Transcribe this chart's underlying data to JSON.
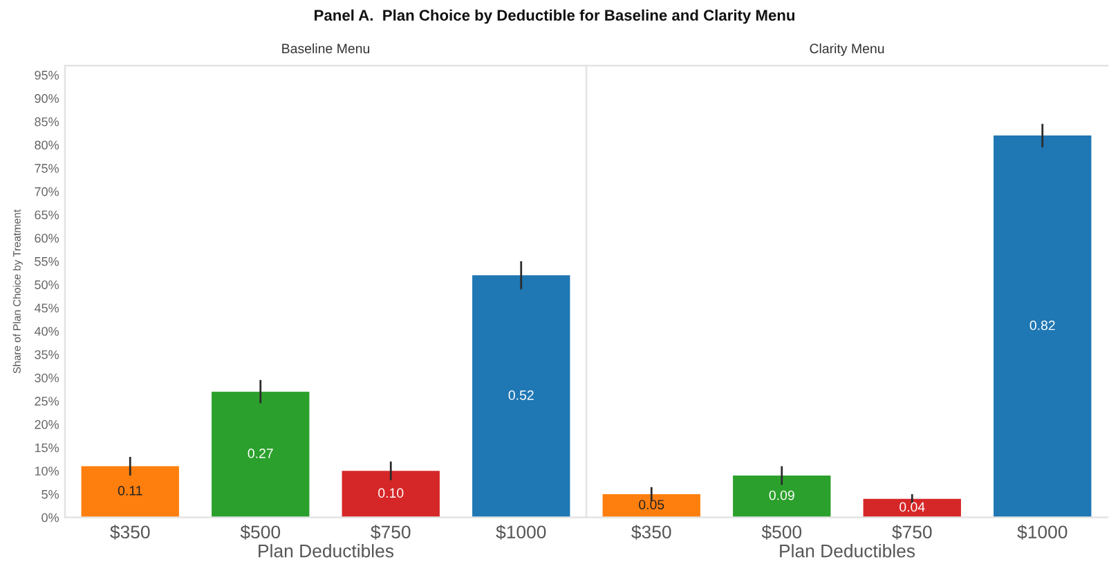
{
  "chart_data": [
    {
      "type": "bar",
      "title": "Panel A.  Plan Choice by Deductible for Baseline and Clarity Menu",
      "subtitle": "Baseline Menu",
      "xlabel": "Plan Deductibles",
      "ylabel": "Share of Plan Choice by Treatment",
      "categories": [
        "$350",
        "$500",
        "$750",
        "$1000"
      ],
      "values": [
        0.11,
        0.27,
        0.1,
        0.52
      ],
      "colors": [
        "#ff7f0e",
        "#2ca02c",
        "#d62728",
        "#1f77b4"
      ],
      "errors": [
        0.02,
        0.025,
        0.02,
        0.03
      ],
      "value_labels": [
        "0.11",
        "0.27",
        "0.10",
        "0.52"
      ],
      "ylim": [
        0,
        0.97
      ],
      "yticks": [
        {
          "value": 0,
          "label": "0%"
        },
        {
          "value": 0.05,
          "label": "5%"
        },
        {
          "value": 0.1,
          "label": "10%"
        },
        {
          "value": 0.15,
          "label": "15%"
        },
        {
          "value": 0.2,
          "label": "20%"
        },
        {
          "value": 0.25,
          "label": "25%"
        },
        {
          "value": 0.3,
          "label": "30%"
        },
        {
          "value": 0.35,
          "label": "35%"
        },
        {
          "value": 0.4,
          "label": "40%"
        },
        {
          "value": 0.45,
          "label": "45%"
        },
        {
          "value": 0.5,
          "label": "50%"
        },
        {
          "value": 0.55,
          "label": "55%"
        },
        {
          "value": 0.6,
          "label": "60%"
        },
        {
          "value": 0.65,
          "label": "65%"
        },
        {
          "value": 0.7,
          "label": "70%"
        },
        {
          "value": 0.75,
          "label": "75%"
        },
        {
          "value": 0.8,
          "label": "80%"
        },
        {
          "value": 0.85,
          "label": "85%"
        },
        {
          "value": 0.9,
          "label": "90%"
        },
        {
          "value": 0.95,
          "label": "95%"
        }
      ]
    },
    {
      "type": "bar",
      "subtitle": "Clarity Menu",
      "xlabel": "Plan Deductibles",
      "categories": [
        "$350",
        "$500",
        "$750",
        "$1000"
      ],
      "values": [
        0.05,
        0.09,
        0.04,
        0.82
      ],
      "colors": [
        "#ff7f0e",
        "#2ca02c",
        "#d62728",
        "#1f77b4"
      ],
      "errors": [
        0.015,
        0.02,
        0.01,
        0.025
      ],
      "value_labels": [
        "0.05",
        "0.09",
        "0.04",
        "0.82"
      ],
      "ylim": [
        0,
        0.97
      ],
      "tick_labels": "x"
    }
  ]
}
